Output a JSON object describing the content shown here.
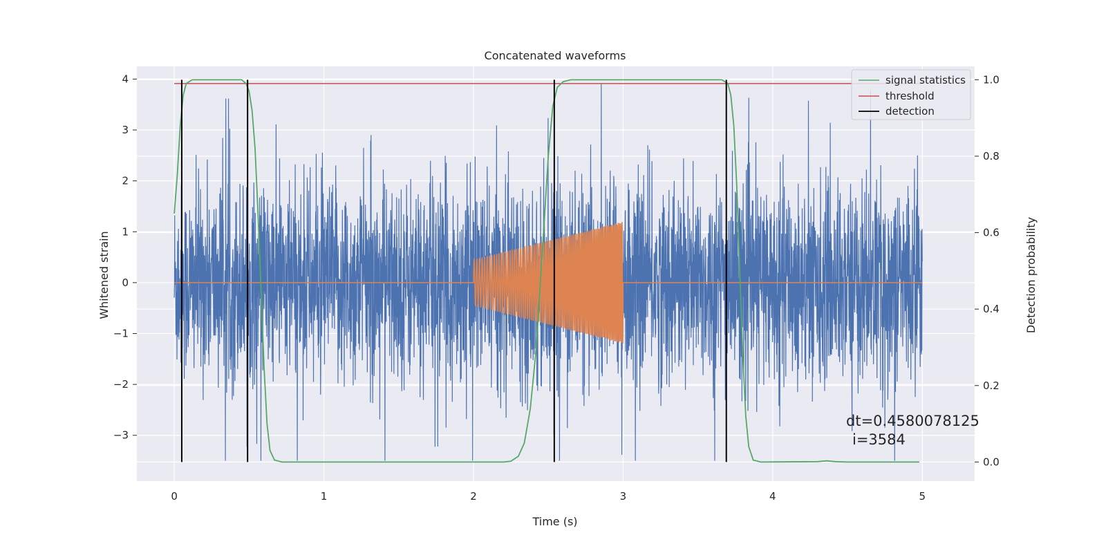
{
  "chart_data": {
    "type": "line",
    "title": "Concatenated waveforms",
    "xlabel": "Time (s)",
    "ylabel_left": "Whitened strain",
    "ylabel_right": "Detection probability",
    "xlim": [
      -0.25,
      5.35
    ],
    "ylim_left": [
      -3.9,
      4.25
    ],
    "ylim_right": [
      -0.05,
      1.035
    ],
    "x_ticks": [
      0,
      1,
      2,
      3,
      4,
      5
    ],
    "y_ticks_left": [
      -3,
      -2,
      -1,
      0,
      1,
      2,
      3,
      4
    ],
    "y_ticks_left_labels": [
      "−3",
      "−2",
      "−1",
      "0",
      "1",
      "2",
      "3",
      "4"
    ],
    "y_ticks_right": [
      0.0,
      0.2,
      0.4,
      0.6,
      0.8,
      1.0
    ],
    "y_ticks_right_labels": [
      "0.0",
      "0.2",
      "0.4",
      "0.6",
      "0.8",
      "1.0"
    ],
    "grid": true,
    "legend_position": "top-right",
    "colors": {
      "strain": "#4c72b0",
      "injected": "#dd8452",
      "signal_statistics": "#55a868",
      "threshold": "#c44e52",
      "detection": "#000000",
      "background": "#eaeaf2"
    },
    "series": [
      {
        "key": "strain",
        "axis": "left",
        "x_range": [
          0,
          5
        ],
        "amplitude_range": [
          -3.5,
          3.9
        ]
      },
      {
        "key": "injected",
        "axis": "left",
        "x_range": [
          2,
          3
        ],
        "envelope_start": 0.45,
        "envelope_end": 1.2
      },
      {
        "key": "signal_statistics",
        "name": "signal statistics",
        "axis": "right",
        "points": [
          [
            0.0,
            0.65
          ],
          [
            0.02,
            0.75
          ],
          [
            0.04,
            0.88
          ],
          [
            0.06,
            0.96
          ],
          [
            0.08,
            0.99
          ],
          [
            0.12,
            1.0
          ],
          [
            0.45,
            1.0
          ],
          [
            0.48,
            0.99
          ],
          [
            0.5,
            0.97
          ],
          [
            0.52,
            0.92
          ],
          [
            0.54,
            0.82
          ],
          [
            0.56,
            0.65
          ],
          [
            0.58,
            0.45
          ],
          [
            0.6,
            0.25
          ],
          [
            0.62,
            0.1
          ],
          [
            0.64,
            0.03
          ],
          [
            0.67,
            0.005
          ],
          [
            0.72,
            0.0
          ],
          [
            2.2,
            0.0
          ],
          [
            2.25,
            0.002
          ],
          [
            2.3,
            0.015
          ],
          [
            2.34,
            0.05
          ],
          [
            2.38,
            0.14
          ],
          [
            2.42,
            0.3
          ],
          [
            2.46,
            0.55
          ],
          [
            2.5,
            0.8
          ],
          [
            2.53,
            0.93
          ],
          [
            2.56,
            0.98
          ],
          [
            2.6,
            0.995
          ],
          [
            2.65,
            1.0
          ],
          [
            3.66,
            1.0
          ],
          [
            3.7,
            0.99
          ],
          [
            3.72,
            0.96
          ],
          [
            3.74,
            0.88
          ],
          [
            3.76,
            0.72
          ],
          [
            3.78,
            0.5
          ],
          [
            3.8,
            0.28
          ],
          [
            3.82,
            0.12
          ],
          [
            3.84,
            0.04
          ],
          [
            3.87,
            0.005
          ],
          [
            3.92,
            0.0
          ],
          [
            4.3,
            0.001
          ],
          [
            4.36,
            0.003
          ],
          [
            4.42,
            0.001
          ],
          [
            4.5,
            0.0
          ],
          [
            4.98,
            0.0
          ]
        ]
      },
      {
        "key": "threshold",
        "name": "threshold",
        "axis": "right",
        "x_range": [
          0,
          5
        ],
        "value": 0.99
      },
      {
        "key": "detection",
        "name": "detection",
        "axis": "right",
        "x": [
          0.05,
          0.49,
          2.54,
          3.69
        ],
        "y_range": [
          0.0,
          1.0
        ]
      }
    ],
    "annotations": {
      "dt": "dt=0.4580078125",
      "i": "i=3584"
    }
  }
}
